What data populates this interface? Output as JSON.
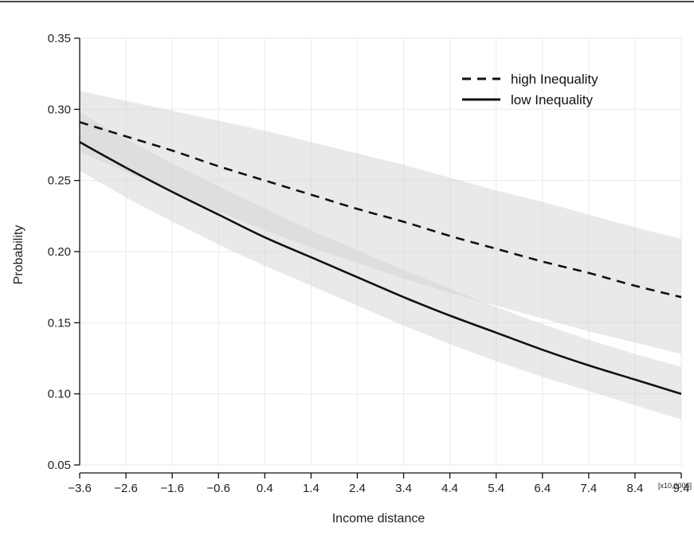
{
  "chart_data": {
    "type": "line",
    "xlabel": "Income distance",
    "ylabel": "Probability",
    "x_unit": "[x10,000$]",
    "xlim": [
      -3.6,
      9.4
    ],
    "ylim": [
      0.05,
      0.35
    ],
    "x_ticks": [
      "-3.6",
      "-2.6",
      "-1.6",
      "-0.6",
      "0.4",
      "1.4",
      "2.4",
      "3.4",
      "4.4",
      "5.4",
      "6.4",
      "7.4",
      "8.4",
      "9.4"
    ],
    "y_ticks": [
      "0.05",
      "0.10",
      "0.15",
      "0.20",
      "0.25",
      "0.30",
      "0.35"
    ],
    "grid": true,
    "legend_position": "top-right",
    "colors": {
      "band": "#d4d4d4",
      "line": "#111111",
      "grid": "#ececec"
    },
    "x": [
      -3.6,
      -2.6,
      -1.6,
      -0.6,
      0.4,
      1.4,
      2.4,
      3.4,
      4.4,
      5.4,
      6.4,
      7.4,
      8.4,
      9.4
    ],
    "series": [
      {
        "name": "high Inequality",
        "style": "dashed",
        "values": [
          0.291,
          0.281,
          0.271,
          0.26,
          0.25,
          0.24,
          0.23,
          0.221,
          0.211,
          0.202,
          0.193,
          0.185,
          0.176,
          0.168
        ],
        "lower": [
          0.27,
          0.256,
          0.242,
          0.228,
          0.215,
          0.203,
          0.192,
          0.181,
          0.171,
          0.162,
          0.153,
          0.144,
          0.136,
          0.128
        ],
        "upper": [
          0.313,
          0.306,
          0.299,
          0.292,
          0.285,
          0.277,
          0.269,
          0.261,
          0.252,
          0.243,
          0.235,
          0.226,
          0.217,
          0.209
        ]
      },
      {
        "name": "low Inequality",
        "style": "solid",
        "values": [
          0.277,
          0.259,
          0.242,
          0.226,
          0.21,
          0.196,
          0.182,
          0.168,
          0.155,
          0.143,
          0.131,
          0.12,
          0.11,
          0.1
        ],
        "lower": [
          0.257,
          0.238,
          0.221,
          0.205,
          0.19,
          0.176,
          0.162,
          0.148,
          0.135,
          0.123,
          0.112,
          0.102,
          0.092,
          0.082
        ],
        "upper": [
          0.298,
          0.279,
          0.262,
          0.246,
          0.23,
          0.215,
          0.201,
          0.187,
          0.174,
          0.161,
          0.149,
          0.138,
          0.128,
          0.119
        ]
      }
    ]
  }
}
